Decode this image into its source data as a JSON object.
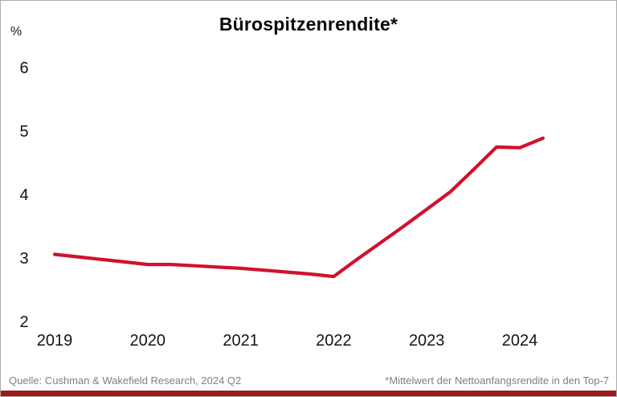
{
  "page": {
    "title": "Bürospitzenrendite*",
    "unit_label": "%",
    "source": "Quelle: Cushman & Wakefield Research, 2024 Q2",
    "footnote": "*Mittelwert der Nettoanfangsrendite in den Top-7"
  },
  "colors": {
    "line": "#d0112e",
    "bottom_bar": "#9e1a1d",
    "footer_text": "#7f7f7f",
    "tick_text": "#141414",
    "border": "#ababab"
  },
  "chart_data": {
    "type": "line",
    "title": "Bürospitzenrendite*",
    "xlabel": "",
    "ylabel": "%",
    "grid": false,
    "legend": false,
    "xticks": [
      2019,
      2020,
      2021,
      2022,
      2023,
      2024
    ],
    "yticks": [
      2,
      3,
      4,
      5,
      6
    ],
    "xlim": [
      2018.9,
      2024.8
    ],
    "ylim": [
      1.9,
      6.4
    ],
    "x_unit": "decimal years, quarterly steps (Q1 = .00, Q2 = .25, Q3 = .50, Q4 = .75)",
    "series": [
      {
        "name": "Bürospitzenrendite Mittelwert Top-7 (%)",
        "x": [
          2019.0,
          2019.25,
          2019.5,
          2019.75,
          2020.0,
          2020.25,
          2020.5,
          2020.75,
          2021.0,
          2021.25,
          2021.5,
          2021.75,
          2022.0,
          2022.25,
          2022.5,
          2022.75,
          2023.0,
          2023.25,
          2023.5,
          2023.75,
          2024.0,
          2024.25
        ],
        "values": [
          3.07,
          3.03,
          2.99,
          2.95,
          2.91,
          2.91,
          2.89,
          2.87,
          2.85,
          2.82,
          2.79,
          2.76,
          2.72,
          2.99,
          3.25,
          3.51,
          3.78,
          4.05,
          4.4,
          4.76,
          4.75,
          4.9
        ]
      }
    ]
  }
}
